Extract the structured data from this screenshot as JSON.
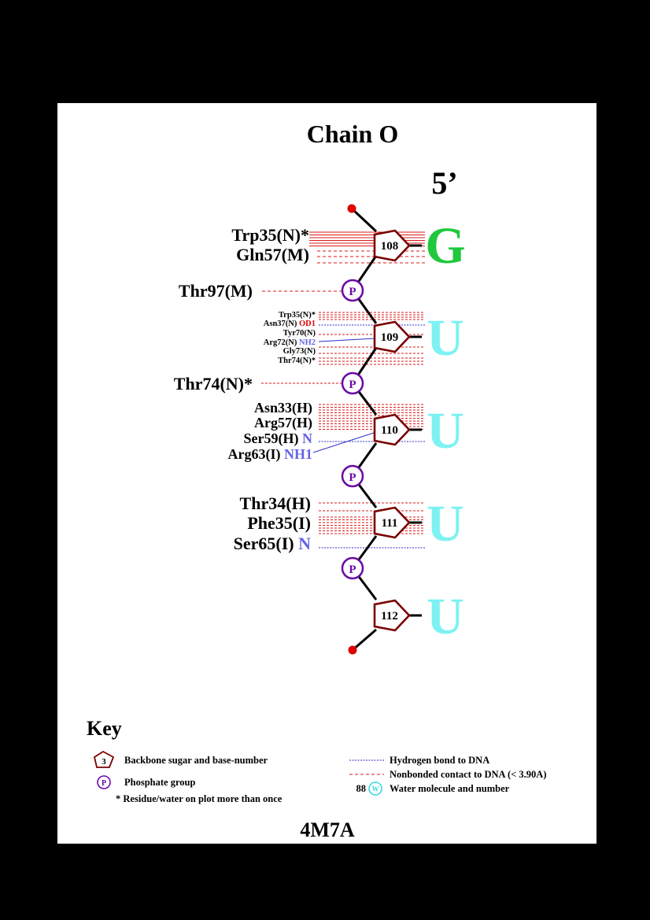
{
  "title": "Chain O",
  "strand_end": "5’",
  "pdb_id": "4M7A",
  "colors": {
    "sugar": "#7a0000",
    "phosphate": "#6a0aa8",
    "hbond": "#2f2fd0",
    "nonbonded": "#d81818",
    "base_G": "#1fc83c",
    "base_U": "#7ef2f2",
    "atom_red": "#e00000",
    "atom_blue": "#6464e6"
  },
  "nucleotides": [
    {
      "number": "108",
      "base": "G"
    },
    {
      "number": "109",
      "base": "U"
    },
    {
      "number": "110",
      "base": "U"
    },
    {
      "number": "111",
      "base": "U"
    },
    {
      "number": "112",
      "base": "U"
    }
  ],
  "phosphate_symbol": "P",
  "contacts": {
    "n108": [
      "Trp35(N)*",
      "Gln57(M)"
    ],
    "p1": "Thr97(M)",
    "n109": [
      {
        "res": "Trp35(N)*",
        "atom": ""
      },
      {
        "res": "Asn37(N)",
        "atom": "OD1"
      },
      {
        "res": "Tyr70(N)",
        "atom": ""
      },
      {
        "res": "Arg72(N)",
        "atom": "NH2"
      },
      {
        "res": "Gly73(N)",
        "atom": ""
      },
      {
        "res": "Thr74(N)*",
        "atom": ""
      }
    ],
    "p2": "Thr74(N)*",
    "n110": [
      {
        "res": "Asn33(H)",
        "atom": ""
      },
      {
        "res": "Arg57(H)",
        "atom": ""
      },
      {
        "res": "Ser59(H)",
        "atom": "N"
      },
      {
        "res": "Arg63(I)",
        "atom": "NH1"
      }
    ],
    "n111": [
      {
        "res": "Thr34(H)",
        "atom": ""
      },
      {
        "res": "Phe35(I)",
        "atom": ""
      },
      {
        "res": "Ser65(I)",
        "atom": "N"
      }
    ]
  },
  "key": {
    "heading": "Key",
    "sugar_symbol": "3",
    "sugar_label": "Backbone sugar and base-number",
    "phosphate_symbol": "P",
    "phosphate_label": "Phosphate group",
    "star_label": "* Residue/water on plot more than once",
    "hbond_label": "Hydrogen bond to DNA",
    "nonbonded_label": "Nonbonded contact to DNA (< 3.90A)",
    "water_number": "88",
    "water_symbol": "W",
    "water_label": "Water molecule and number"
  }
}
